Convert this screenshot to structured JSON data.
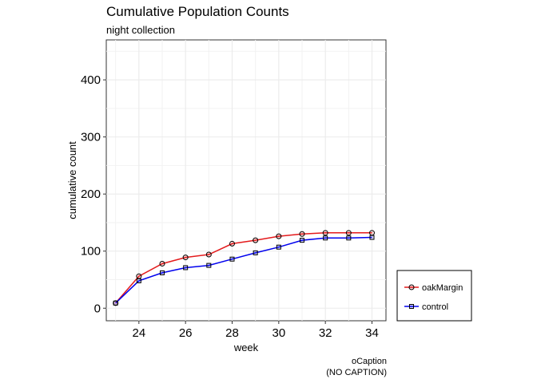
{
  "chart_data": {
    "type": "line",
    "title": "Cumulative Population Counts",
    "subtitle": "night collection",
    "xlabel": "week",
    "ylabel": "cumulative count",
    "xlim": [
      22.6,
      34.6
    ],
    "ylim": [
      -22,
      470
    ],
    "xticks": [
      24,
      26,
      28,
      30,
      32,
      34
    ],
    "yticks": [
      0,
      100,
      200,
      300,
      400
    ],
    "grid": true,
    "legend_position": "bottom-right",
    "x": [
      23,
      24,
      25,
      26,
      27,
      28,
      29,
      30,
      31,
      32,
      33,
      34
    ],
    "series": [
      {
        "name": "oakMargin",
        "color": "#e41a1c",
        "marker": "circle",
        "values": [
          9,
          56,
          78,
          89,
          94,
          113,
          119,
          126,
          130,
          132,
          132,
          132
        ]
      },
      {
        "name": "control",
        "color": "#0000ee",
        "marker": "square",
        "values": [
          9,
          48,
          62,
          71,
          75,
          86,
          97,
          107,
          119,
          123,
          123,
          124
        ]
      }
    ],
    "caption": [
      "oCaption",
      "(NO CAPTION)"
    ]
  }
}
